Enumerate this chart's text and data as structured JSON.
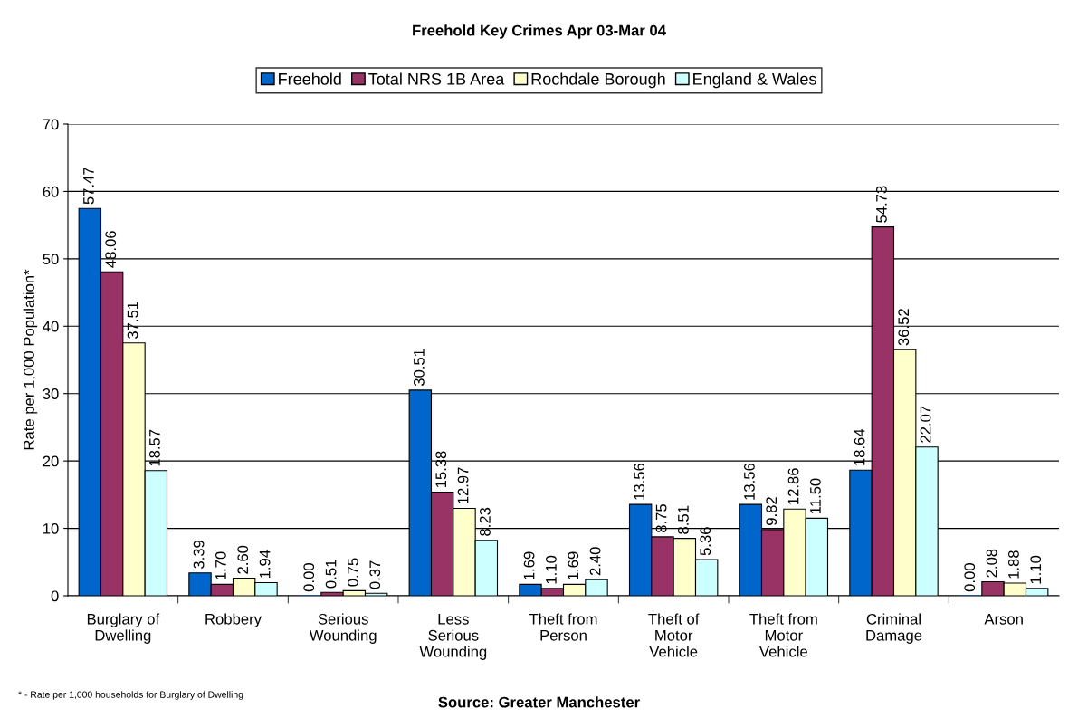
{
  "chart_data": {
    "type": "bar",
    "title": "Freehold Key Crimes Apr 03-Mar 04",
    "categories": [
      "Burglary of\nDwelling",
      "Robbery",
      "Serious\nWounding",
      "Less\nSerious\nWounding",
      "Theft from\nPerson",
      "Theft of\nMotor\nVehicle",
      "Theft from\nMotor\nVehicle",
      "Criminal\nDamage",
      "Arson"
    ],
    "series": [
      {
        "name": "Freehold",
        "color": "#0066cc",
        "values": [
          57.47,
          3.39,
          0.0,
          30.51,
          1.69,
          13.56,
          13.56,
          18.64,
          0.0
        ],
        "value_labels": [
          "57.47",
          "3.39",
          "0.00",
          "30.51",
          "1.69",
          "13.56",
          "13.56",
          "18.64",
          "0.00"
        ]
      },
      {
        "name": "Total NRS 1B Area",
        "color": "#993366",
        "values": [
          48.06,
          1.7,
          0.51,
          15.38,
          1.1,
          8.75,
          9.82,
          54.73,
          2.08
        ],
        "value_labels": [
          "48.06",
          "1.70",
          "0.51",
          "15.38",
          "1.10",
          "8.75",
          "9.82",
          "54.73",
          "2.08"
        ]
      },
      {
        "name": "Rochdale Borough",
        "color": "#ffffcc",
        "values": [
          37.51,
          2.6,
          0.75,
          12.97,
          1.69,
          8.51,
          12.86,
          36.52,
          1.88
        ],
        "value_labels": [
          "37.51",
          "2.60",
          "0.75",
          "12.97",
          "1.69",
          "8.51",
          "12.86",
          "36.52",
          "1.88"
        ]
      },
      {
        "name": "England & Wales",
        "color": "#ccffff",
        "values": [
          18.57,
          1.94,
          0.37,
          8.23,
          2.4,
          5.36,
          11.5,
          22.07,
          1.1
        ],
        "value_labels": [
          "18.57",
          "1.94",
          "0.37",
          "8.23",
          "2.40",
          "5.36",
          "11.50",
          "22.07",
          "1.10"
        ]
      }
    ],
    "ylabel": "Rate per 1,000 Population*",
    "ylim": [
      0,
      70
    ],
    "yticks": [
      0,
      10,
      20,
      30,
      40,
      50,
      60,
      70
    ],
    "grid": "y",
    "legend": "top",
    "annotations": [
      "* - Rate per 1,000 households for Burglary of Dwelling",
      "Source: Greater Manchester"
    ]
  }
}
